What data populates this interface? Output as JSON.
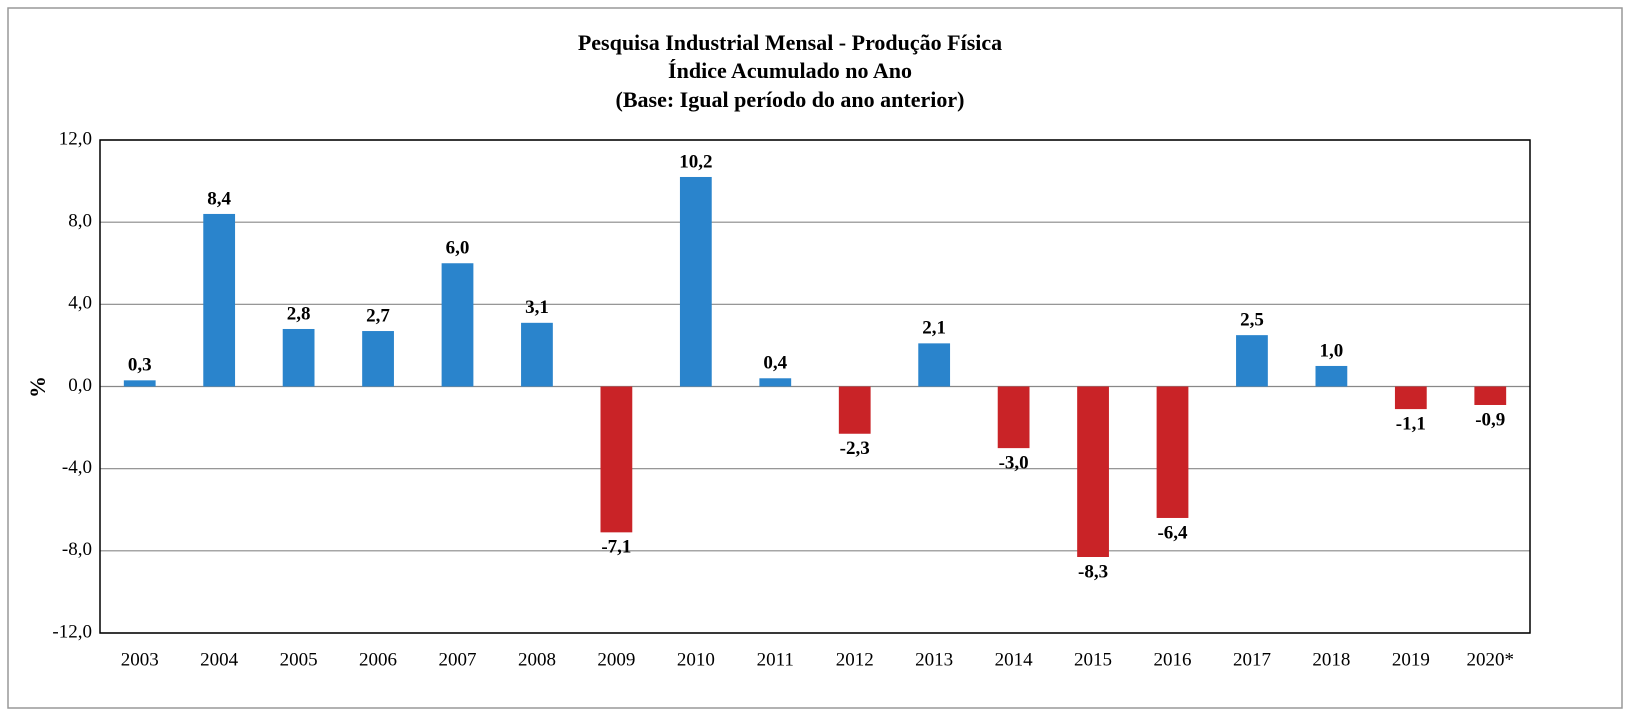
{
  "chart_data": {
    "type": "bar",
    "title": [
      "Pesquisa Industrial Mensal - Produção  Física",
      "Índice Acumulado  no Ano",
      "(Base: Igual período do ano anterior)"
    ],
    "ylabel": "%",
    "categories": [
      "2003",
      "2004",
      "2005",
      "2006",
      "2007",
      "2008",
      "2009",
      "2010",
      "2011",
      "2012",
      "2013",
      "2014",
      "2015",
      "2016",
      "2017",
      "2018",
      "2019",
      "2020*"
    ],
    "values": [
      0.3,
      8.4,
      2.8,
      2.7,
      6.0,
      3.1,
      -7.1,
      10.2,
      0.4,
      -2.3,
      2.1,
      -3.0,
      -8.3,
      -6.4,
      2.5,
      1.0,
      -1.1,
      -0.9
    ],
    "value_labels": [
      "0,3",
      "8,4",
      "2,8",
      "2,7",
      "6,0",
      "3,1",
      "-7,1",
      "10,2",
      "0,4",
      "-2,3",
      "2,1",
      "-3,0",
      "-8,3",
      "-6,4",
      "2,5",
      "1,0",
      "-1,1",
      "-0,9"
    ],
    "colors": [
      "#2a84cc",
      "#2a84cc",
      "#2a84cc",
      "#2a84cc",
      "#2a84cc",
      "#2a84cc",
      "#c92327",
      "#2a84cc",
      "#2a84cc",
      "#c92327",
      "#2a84cc",
      "#c92327",
      "#c92327",
      "#c92327",
      "#2a84cc",
      "#2a84cc",
      "#c92327",
      "#c92327"
    ],
    "ylim": [
      -12,
      12
    ],
    "yticks": [
      {
        "value": -12,
        "label": "-12,0"
      },
      {
        "value": -8,
        "label": "-8,0"
      },
      {
        "value": -4,
        "label": "-4,0"
      },
      {
        "value": 0,
        "label": "0,0"
      },
      {
        "value": 4,
        "label": "4,0"
      },
      {
        "value": 8,
        "label": "8,0"
      },
      {
        "value": 12,
        "label": "12,0"
      }
    ],
    "grid": true
  }
}
